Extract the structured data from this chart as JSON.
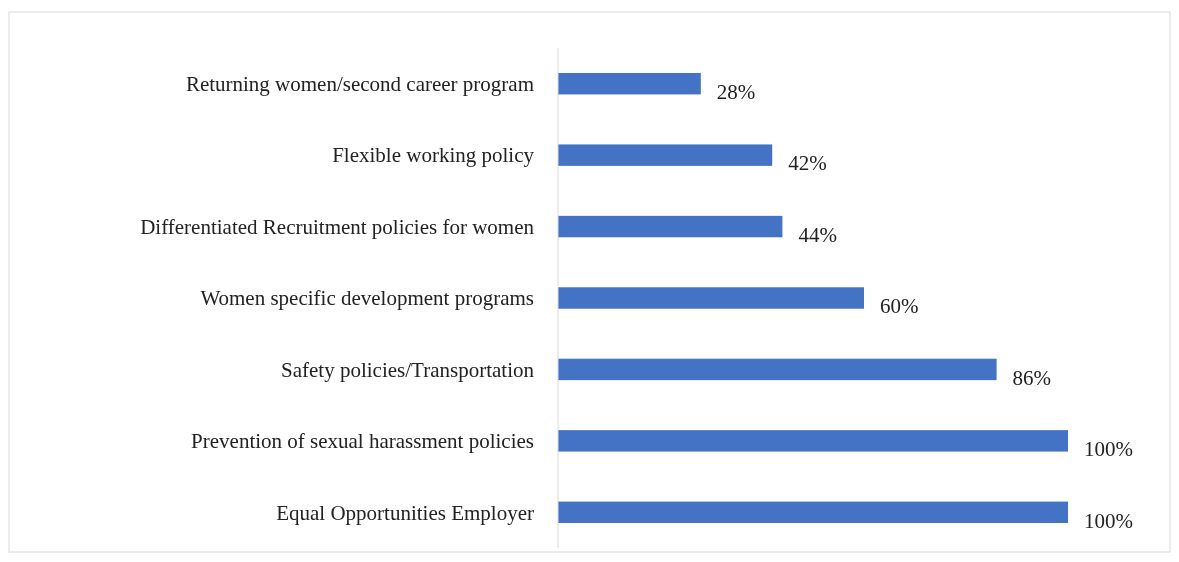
{
  "chart_data": {
    "type": "bar",
    "orientation": "horizontal",
    "categories": [
      "Returning women/second career program",
      "Flexible working policy",
      "Differentiated Recruitment policies for women",
      "Women specific development programs",
      "Safety policies/Transportation",
      "Prevention of sexual harassment policies",
      "Equal Opportunities Employer"
    ],
    "values": [
      28,
      42,
      44,
      60,
      86,
      100,
      100
    ],
    "value_labels": [
      "28%",
      "42%",
      "44%",
      "60%",
      "86%",
      "100%",
      "100%"
    ],
    "color": "#4472c4"
  }
}
